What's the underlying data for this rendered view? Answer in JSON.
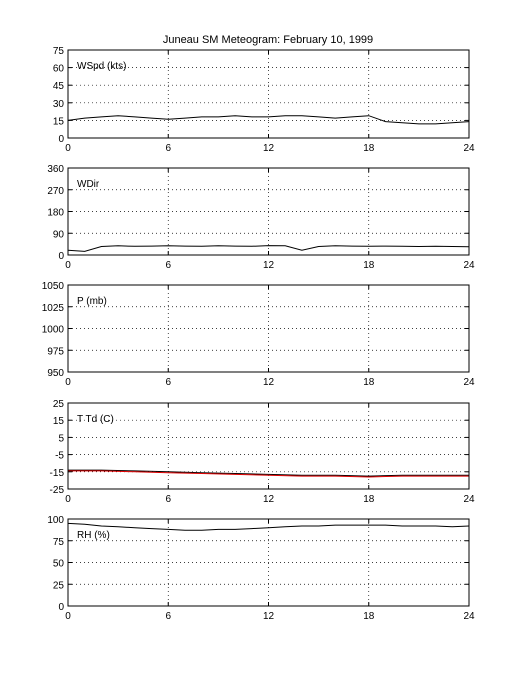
{
  "title": "Juneau SM Meteogram:   February 10, 1999",
  "chart_data": [
    {
      "type": "line",
      "label": "WSpd (kts)",
      "xlim": [
        0,
        24
      ],
      "ylim": [
        0,
        75
      ],
      "xticks": [
        0,
        6,
        12,
        18,
        24
      ],
      "yticks": [
        0,
        15,
        30,
        45,
        60,
        75
      ],
      "grid": true,
      "series": [
        {
          "color": "#000000",
          "x": [
            0,
            1,
            2,
            3,
            4,
            5,
            6,
            7,
            8,
            9,
            10,
            11,
            12,
            13,
            14,
            15,
            16,
            17,
            18,
            19,
            20,
            21,
            22,
            23,
            24
          ],
          "values": [
            15,
            17,
            18,
            19,
            18,
            17,
            16,
            17,
            18,
            18,
            19,
            18,
            18,
            19,
            19,
            18,
            17,
            18,
            19,
            14,
            13,
            12,
            12,
            13,
            14
          ]
        }
      ]
    },
    {
      "type": "line",
      "label": "WDir",
      "xlim": [
        0,
        24
      ],
      "ylim": [
        0,
        360
      ],
      "xticks": [
        0,
        6,
        12,
        18,
        24
      ],
      "yticks": [
        0,
        90,
        180,
        270,
        360
      ],
      "grid": true,
      "series": [
        {
          "color": "#000000",
          "x": [
            0,
            1,
            2,
            3,
            4,
            5,
            6,
            7,
            8,
            9,
            10,
            11,
            12,
            13,
            14,
            15,
            16,
            17,
            18,
            19,
            20,
            21,
            22,
            23,
            24
          ],
          "values": [
            20,
            15,
            35,
            38,
            36,
            37,
            38,
            37,
            36,
            38,
            37,
            36,
            39,
            38,
            20,
            35,
            38,
            37,
            36,
            37,
            36,
            35,
            36,
            35,
            34
          ]
        }
      ]
    },
    {
      "type": "line",
      "label": "P (mb)",
      "xlim": [
        0,
        24
      ],
      "ylim": [
        950,
        1050
      ],
      "xticks": [
        0,
        6,
        12,
        18,
        24
      ],
      "yticks": [
        950,
        975,
        1000,
        1025,
        1050
      ],
      "grid": true,
      "series": []
    },
    {
      "type": "line",
      "label": "T Td (C)",
      "xlim": [
        0,
        24
      ],
      "ylim": [
        -25,
        25
      ],
      "xticks": [
        0,
        6,
        12,
        18,
        24
      ],
      "yticks": [
        -25,
        -15,
        -5,
        5,
        15,
        25
      ],
      "grid": true,
      "series": [
        {
          "color": "#000000",
          "x": [
            0,
            2,
            4,
            6,
            8,
            10,
            12,
            14,
            16,
            18,
            20,
            22,
            24
          ],
          "values": [
            -14,
            -14,
            -14.5,
            -15,
            -15.5,
            -16,
            -16.5,
            -17,
            -17,
            -17.5,
            -17,
            -17,
            -17
          ]
        },
        {
          "color": "#e00000",
          "x": [
            0,
            2,
            4,
            6,
            8,
            10,
            12,
            14,
            16,
            18,
            20,
            22,
            24
          ],
          "values": [
            -14.5,
            -14.5,
            -15,
            -15.5,
            -16,
            -16.5,
            -17,
            -17.5,
            -17.5,
            -18,
            -17.5,
            -17.5,
            -17.5
          ]
        }
      ]
    },
    {
      "type": "line",
      "label": "RH (%)",
      "xlim": [
        0,
        24
      ],
      "ylim": [
        0,
        100
      ],
      "xticks": [
        0,
        6,
        12,
        18,
        24
      ],
      "yticks": [
        0,
        25,
        50,
        75,
        100
      ],
      "grid": true,
      "series": [
        {
          "color": "#000000",
          "x": [
            0,
            1,
            2,
            3,
            4,
            5,
            6,
            7,
            8,
            9,
            10,
            11,
            12,
            13,
            14,
            15,
            16,
            17,
            18,
            19,
            20,
            21,
            22,
            23,
            24
          ],
          "values": [
            95,
            94,
            92,
            91,
            90,
            89,
            88,
            87,
            87,
            88,
            88,
            89,
            90,
            91,
            92,
            92,
            93,
            93,
            93,
            93,
            92,
            92,
            92,
            91,
            92
          ]
        }
      ]
    }
  ]
}
